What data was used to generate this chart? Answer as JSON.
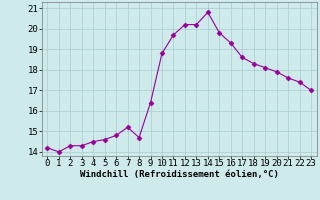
{
  "x": [
    0,
    1,
    2,
    3,
    4,
    5,
    6,
    7,
    8,
    9,
    10,
    11,
    12,
    13,
    14,
    15,
    16,
    17,
    18,
    19,
    20,
    21,
    22,
    23
  ],
  "y": [
    14.2,
    14.0,
    14.3,
    14.3,
    14.5,
    14.6,
    14.8,
    15.2,
    14.7,
    16.4,
    18.8,
    19.7,
    20.2,
    20.2,
    20.8,
    19.8,
    19.3,
    18.6,
    18.3,
    18.1,
    17.9,
    17.6,
    17.4,
    17.0
  ],
  "line_color": "#990099",
  "marker": "D",
  "marker_size": 2.5,
  "background_color": "#ceeaea",
  "grid_color": "#aacccc",
  "xlabel": "Windchill (Refroidissement éolien,°C)",
  "xlim": [
    -0.5,
    23.5
  ],
  "ylim": [
    13.8,
    21.3
  ],
  "yticks": [
    14,
    15,
    16,
    17,
    18,
    19,
    20,
    21
  ],
  "xticks": [
    0,
    1,
    2,
    3,
    4,
    5,
    6,
    7,
    8,
    9,
    10,
    11,
    12,
    13,
    14,
    15,
    16,
    17,
    18,
    19,
    20,
    21,
    22,
    23
  ],
  "xlabel_fontsize": 6.5,
  "tick_fontsize": 6.5,
  "linewidth": 0.8
}
